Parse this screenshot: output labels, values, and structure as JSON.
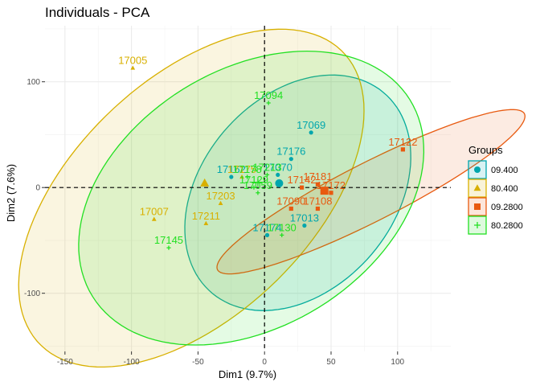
{
  "chart_data": {
    "type": "scatter",
    "title": "Individuals - PCA",
    "xlabel": "Dim1 (9.7%)",
    "ylabel": "Dim2 (7.6%)",
    "xlim": [
      -165,
      140
    ],
    "ylim": [
      -155,
      153
    ],
    "x_ticks": [
      -150,
      -100,
      -50,
      0,
      50,
      100
    ],
    "y_ticks": [
      -100,
      0,
      100
    ],
    "x_tick_labels": [
      "-150",
      "-100",
      "-50",
      "0",
      "50",
      "100"
    ],
    "y_tick_labels": [
      "-100",
      "0",
      "100"
    ],
    "grid": true,
    "legend_position": "right",
    "legend_title": "Groups",
    "series": [
      {
        "name": "09.400",
        "color": "#00A6AD",
        "shape": "circle",
        "ellipse": {
          "cx": 25,
          "cy": -5,
          "rx": 117,
          "ry": 77,
          "angle_deg": 66
        },
        "centroid": [
          11,
          4
        ],
        "points": [
          {
            "label": "17069",
            "x": 35,
            "y": 52
          },
          {
            "label": "17176",
            "x": 20,
            "y": 27
          },
          {
            "label": "17162",
            "x": -25,
            "y": 10
          },
          {
            "label": "17070",
            "x": 10,
            "y": 12
          },
          {
            "label": "17013",
            "x": 30,
            "y": -36
          },
          {
            "label": "17174",
            "x": 2,
            "y": -45
          }
        ]
      },
      {
        "name": "80.400",
        "color": "#D8B000",
        "shape": "triangle",
        "ellipse": {
          "cx": -55,
          "cy": -10,
          "rx": 181,
          "ry": 98,
          "angle_deg": 56
        },
        "centroid": [
          -45,
          4
        ],
        "points": [
          {
            "label": "17005",
            "x": -99,
            "y": 113
          },
          {
            "label": "17203",
            "x": -33,
            "y": -15
          },
          {
            "label": "17007",
            "x": -83,
            "y": -30
          },
          {
            "label": "17211",
            "x": -44,
            "y": -34
          },
          {
            "label": "17175",
            "x": -17,
            "y": 10
          }
        ]
      },
      {
        "name": "09.2800",
        "color": "#E85A10",
        "shape": "square",
        "ellipse": {
          "cx": 80,
          "cy": -4,
          "rx": 137,
          "ry": 26,
          "angle_deg": 33
        },
        "centroid": [
          45,
          -3
        ],
        "points": [
          {
            "label": "17122",
            "x": 104,
            "y": 36
          },
          {
            "label": "17181",
            "x": 40,
            "y": 3
          },
          {
            "label": "17142",
            "x": 28,
            "y": 0
          },
          {
            "label": "17090",
            "x": 20,
            "y": -20
          },
          {
            "label": "17108",
            "x": 40,
            "y": -20
          },
          {
            "label": "17172",
            "x": 50,
            "y": -5
          }
        ]
      },
      {
        "name": "80.2800",
        "color": "#22E022",
        "shape": "cross",
        "ellipse": {
          "cx": -10,
          "cy": -10,
          "rx": 155,
          "ry": 110,
          "angle_deg": 51
        },
        "centroid": [
          -5,
          5
        ],
        "points": [
          {
            "label": "17094",
            "x": 3,
            "y": 80
          },
          {
            "label": "17213",
            "x": 2,
            "y": 12
          },
          {
            "label": "17178",
            "x": -13,
            "y": 10
          },
          {
            "label": "17129",
            "x": -8,
            "y": 0
          },
          {
            "label": "17059",
            "x": -5,
            "y": -5
          },
          {
            "label": "17145",
            "x": -72,
            "y": -57
          },
          {
            "label": "17130",
            "x": 13,
            "y": -45
          }
        ]
      }
    ]
  }
}
